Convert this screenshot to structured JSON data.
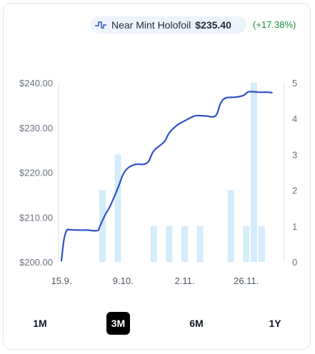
{
  "legend": {
    "icon": "pulse-line-icon",
    "series_name": "Near Mint Holofoil",
    "price": "$235.40",
    "change": "(+17.38%)"
  },
  "colors": {
    "line": "#2f4fc9",
    "bars": "#d4ecfb",
    "change": "#1f8a3a",
    "active_button_bg": "#000000"
  },
  "range_buttons": [
    {
      "label": "1M",
      "active": false
    },
    {
      "label": "3M",
      "active": true
    },
    {
      "label": "6M",
      "active": false
    },
    {
      "label": "1Y",
      "active": false
    }
  ],
  "chart_data": {
    "type": "line",
    "left_axis": {
      "min": 200,
      "max": 240,
      "ticks": [
        "$200.00",
        "$210.00",
        "$220.00",
        "$230.00",
        "$240.00"
      ]
    },
    "right_axis": {
      "min": 0,
      "max": 5,
      "ticks": [
        "0",
        "1",
        "2",
        "3",
        "4",
        "5"
      ]
    },
    "x_axis": {
      "start": "2024-09-15",
      "end": "2024-12-10",
      "ticks": [
        {
          "date": "2024-09-15",
          "label": "15.9."
        },
        {
          "date": "2024-10-09",
          "label": "9.10."
        },
        {
          "date": "2024-11-02",
          "label": "2.11."
        },
        {
          "date": "2024-11-26",
          "label": "26.11."
        }
      ]
    },
    "price_series": [
      [
        "2024-09-15",
        200.3
      ],
      [
        "2024-09-16",
        205.0
      ],
      [
        "2024-09-17",
        207.0
      ],
      [
        "2024-09-18",
        207.2
      ],
      [
        "2024-09-21",
        207.1
      ],
      [
        "2024-09-25",
        207.1
      ],
      [
        "2024-09-29",
        207.0
      ],
      [
        "2024-09-30",
        208.0
      ],
      [
        "2024-10-02",
        210.5
      ],
      [
        "2024-10-04",
        212.5
      ],
      [
        "2024-10-07",
        216.5
      ],
      [
        "2024-10-09",
        219.5
      ],
      [
        "2024-10-11",
        221.0
      ],
      [
        "2024-10-14",
        221.8
      ],
      [
        "2024-10-17",
        221.8
      ],
      [
        "2024-10-19",
        222.5
      ],
      [
        "2024-10-21",
        224.8
      ],
      [
        "2024-10-25",
        226.8
      ],
      [
        "2024-10-27",
        228.8
      ],
      [
        "2024-10-30",
        230.5
      ],
      [
        "2024-11-02",
        231.5
      ],
      [
        "2024-11-06",
        232.6
      ],
      [
        "2024-11-10",
        232.6
      ],
      [
        "2024-11-14",
        232.6
      ],
      [
        "2024-11-16",
        235.4
      ],
      [
        "2024-11-18",
        236.6
      ],
      [
        "2024-11-22",
        236.8
      ],
      [
        "2024-11-25",
        237.2
      ],
      [
        "2024-11-27",
        238.0
      ],
      [
        "2024-12-01",
        237.9
      ],
      [
        "2024-12-04",
        237.9
      ],
      [
        "2024-12-06",
        237.8
      ]
    ],
    "volume_bars": [
      {
        "date": "2024-10-01",
        "value": 2
      },
      {
        "date": "2024-10-07",
        "value": 3
      },
      {
        "date": "2024-10-21",
        "value": 1
      },
      {
        "date": "2024-10-27",
        "value": 1
      },
      {
        "date": "2024-11-02",
        "value": 1
      },
      {
        "date": "2024-11-08",
        "value": 1
      },
      {
        "date": "2024-11-20",
        "value": 2
      },
      {
        "date": "2024-11-26",
        "value": 1
      },
      {
        "date": "2024-11-29",
        "value": 5
      },
      {
        "date": "2024-12-02",
        "value": 1
      }
    ]
  }
}
